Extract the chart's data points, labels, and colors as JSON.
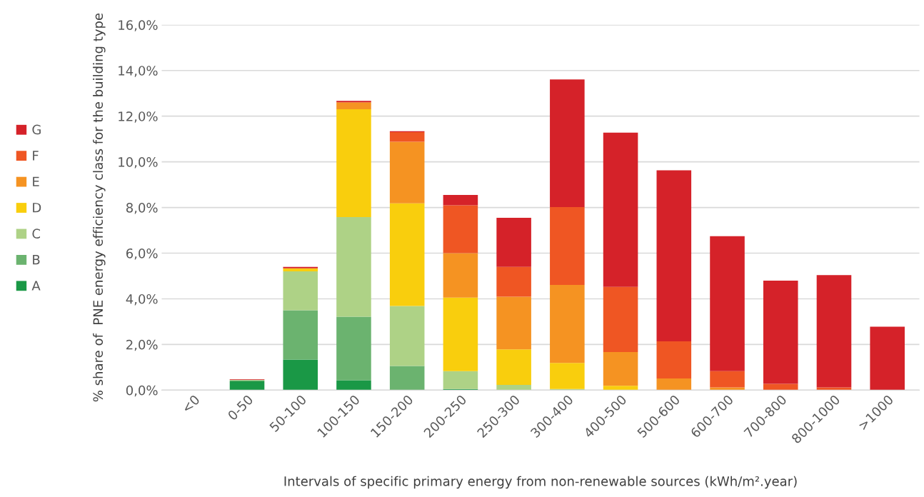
{
  "chart_data": {
    "type": "bar",
    "stacked": true,
    "xlabel": "Intervals of specific primary energy from non-renewable sources (kWh/m².year)",
    "ylabel": "% share of  PNE energy efficiency class for the building type",
    "categories": [
      "<0",
      "0-50",
      "50-100",
      "100-150",
      "150-200",
      "200-250",
      "250-300",
      "300-400",
      "400-500",
      "500-600",
      "600-700",
      "700-800",
      "800-1000",
      ">1000"
    ],
    "series": [
      {
        "name": "A",
        "color": "#1a9846",
        "values": [
          0,
          0.39,
          1.34,
          0.43,
          0,
          0.05,
          0,
          0,
          0,
          0,
          0,
          0,
          0,
          0
        ]
      },
      {
        "name": "B",
        "color": "#6bb36f",
        "values": [
          0,
          0.04,
          2.16,
          2.79,
          1.06,
          0,
          0,
          0,
          0,
          0,
          0,
          0,
          0,
          0
        ]
      },
      {
        "name": "C",
        "color": "#aed286",
        "values": [
          0,
          0.02,
          1.7,
          4.36,
          2.63,
          0.78,
          0.23,
          0.05,
          0,
          0,
          0,
          0,
          0,
          0
        ]
      },
      {
        "name": "D",
        "color": "#f9ce0d",
        "values": [
          0,
          0,
          0.14,
          4.72,
          4.49,
          3.22,
          1.56,
          1.14,
          0.19,
          0,
          0,
          0,
          0,
          0
        ]
      },
      {
        "name": "E",
        "color": "#f59322",
        "values": [
          0,
          0,
          0,
          0.31,
          2.7,
          1.95,
          2.3,
          3.42,
          1.48,
          0.51,
          0.12,
          0,
          0,
          0
        ]
      },
      {
        "name": "F",
        "color": "#ef5623",
        "values": [
          0,
          0.01,
          0,
          0,
          0.42,
          2.1,
          1.31,
          3.41,
          2.85,
          1.63,
          0.71,
          0.28,
          0.12,
          0
        ]
      },
      {
        "name": "G",
        "color": "#d52229",
        "values": [
          0,
          0.02,
          0.06,
          0.06,
          0.04,
          0.45,
          2.15,
          5.59,
          6.76,
          7.49,
          5.91,
          4.52,
          4.92,
          2.78
        ]
      }
    ],
    "ylim": [
      0,
      16
    ],
    "yticks": [
      {
        "value": 0,
        "label": "0,0%"
      },
      {
        "value": 2,
        "label": "2,0%"
      },
      {
        "value": 4,
        "label": "4,0%"
      },
      {
        "value": 6,
        "label": "6,0%"
      },
      {
        "value": 8,
        "label": "8,0%"
      },
      {
        "value": 10,
        "label": "10,0%"
      },
      {
        "value": 12,
        "label": "12,0%"
      },
      {
        "value": 14,
        "label": "14,0%"
      },
      {
        "value": 16,
        "label": "16,0%"
      }
    ],
    "grid": "y",
    "legend": "left"
  }
}
